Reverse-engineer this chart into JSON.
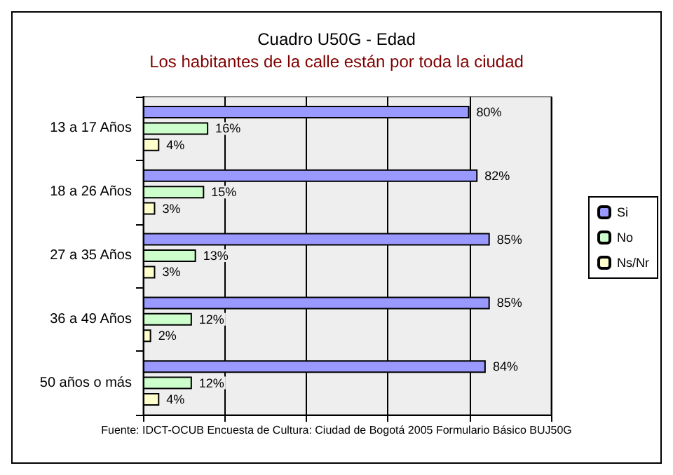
{
  "chart_data": {
    "type": "bar",
    "orientation": "horizontal",
    "title": "Cuadro U50G - Edad",
    "subtitle": "Los habitantes de la calle están por toda la ciudad",
    "categories": [
      "13 a 17 Años",
      "18 a 26 Años",
      "27 a 35 Años",
      "36 a 49 Años",
      "50 años o más"
    ],
    "series": [
      {
        "name": "Si",
        "color": "#9999ff",
        "values": [
          80,
          82,
          85,
          85,
          84
        ],
        "value_labels": [
          "80%",
          "82%",
          "85%",
          "85%",
          "84%"
        ]
      },
      {
        "name": "No",
        "color": "#ccffcc",
        "values": [
          16,
          15,
          13,
          12,
          12
        ],
        "value_labels": [
          "16%",
          "15%",
          "13%",
          "12%",
          "12%"
        ]
      },
      {
        "name": "Ns/Nr",
        "color": "#ffffcc",
        "values": [
          4,
          3,
          3,
          2,
          4
        ],
        "value_labels": [
          "4%",
          "3%",
          "3%",
          "2%",
          "4%"
        ]
      }
    ],
    "tick_labels": "y",
    "grid": "x",
    "legend": "right",
    "annotations": [
      "Fuente: IDCT-OCUB Encuesta de Cultura: Ciudad de Bogotá 2005 Formulario Básico BUJ50G"
    ]
  }
}
